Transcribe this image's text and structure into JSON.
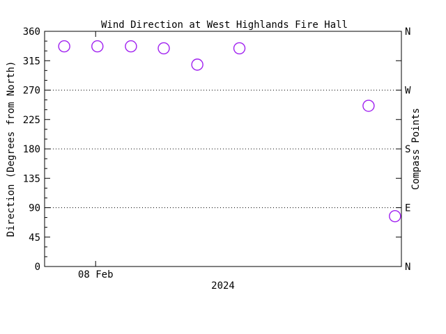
{
  "chart_data": {
    "type": "scatter",
    "title": "Wind Direction at West Highlands Fire Hall",
    "xlabel": "2024",
    "ylabel": "Direction (Degrees from North)",
    "ylabel_right": "Compass Points",
    "ylim": [
      0,
      360
    ],
    "y_tick_step_major": 45,
    "y_tick_step_minor": 15,
    "y_major_tick_labels": [
      "0",
      "45",
      "90",
      "135",
      "180",
      "225",
      "270",
      "315",
      "360"
    ],
    "right_axis": {
      "tick_step": 45,
      "labels": [
        {
          "degrees": 360,
          "label": "N"
        },
        {
          "degrees": 270,
          "label": "W"
        },
        {
          "degrees": 180,
          "label": "S"
        },
        {
          "degrees": 90,
          "label": "E"
        },
        {
          "degrees": 0,
          "label": "N"
        }
      ]
    },
    "gridlines_degrees": [
      270,
      180,
      90
    ],
    "grid_style": "dotted",
    "x_ticks": [
      {
        "fraction": 0.143,
        "label": "08 Feb"
      }
    ],
    "marker": {
      "shape": "open-circle",
      "color": "#A020F0",
      "radius_px": 8
    },
    "points": [
      {
        "x_fraction": 0.055,
        "degrees": 337
      },
      {
        "x_fraction": 0.148,
        "degrees": 337
      },
      {
        "x_fraction": 0.242,
        "degrees": 337
      },
      {
        "x_fraction": 0.334,
        "degrees": 334
      },
      {
        "x_fraction": 0.428,
        "degrees": 309
      },
      {
        "x_fraction": 0.546,
        "degrees": 334
      },
      {
        "x_fraction": 0.908,
        "degrees": 246
      },
      {
        "x_fraction": 0.982,
        "degrees": 77
      }
    ]
  },
  "colors": {
    "background": "#FFFFFF",
    "axis": "#000000",
    "text": "#000000",
    "marker": "#A020F0"
  }
}
